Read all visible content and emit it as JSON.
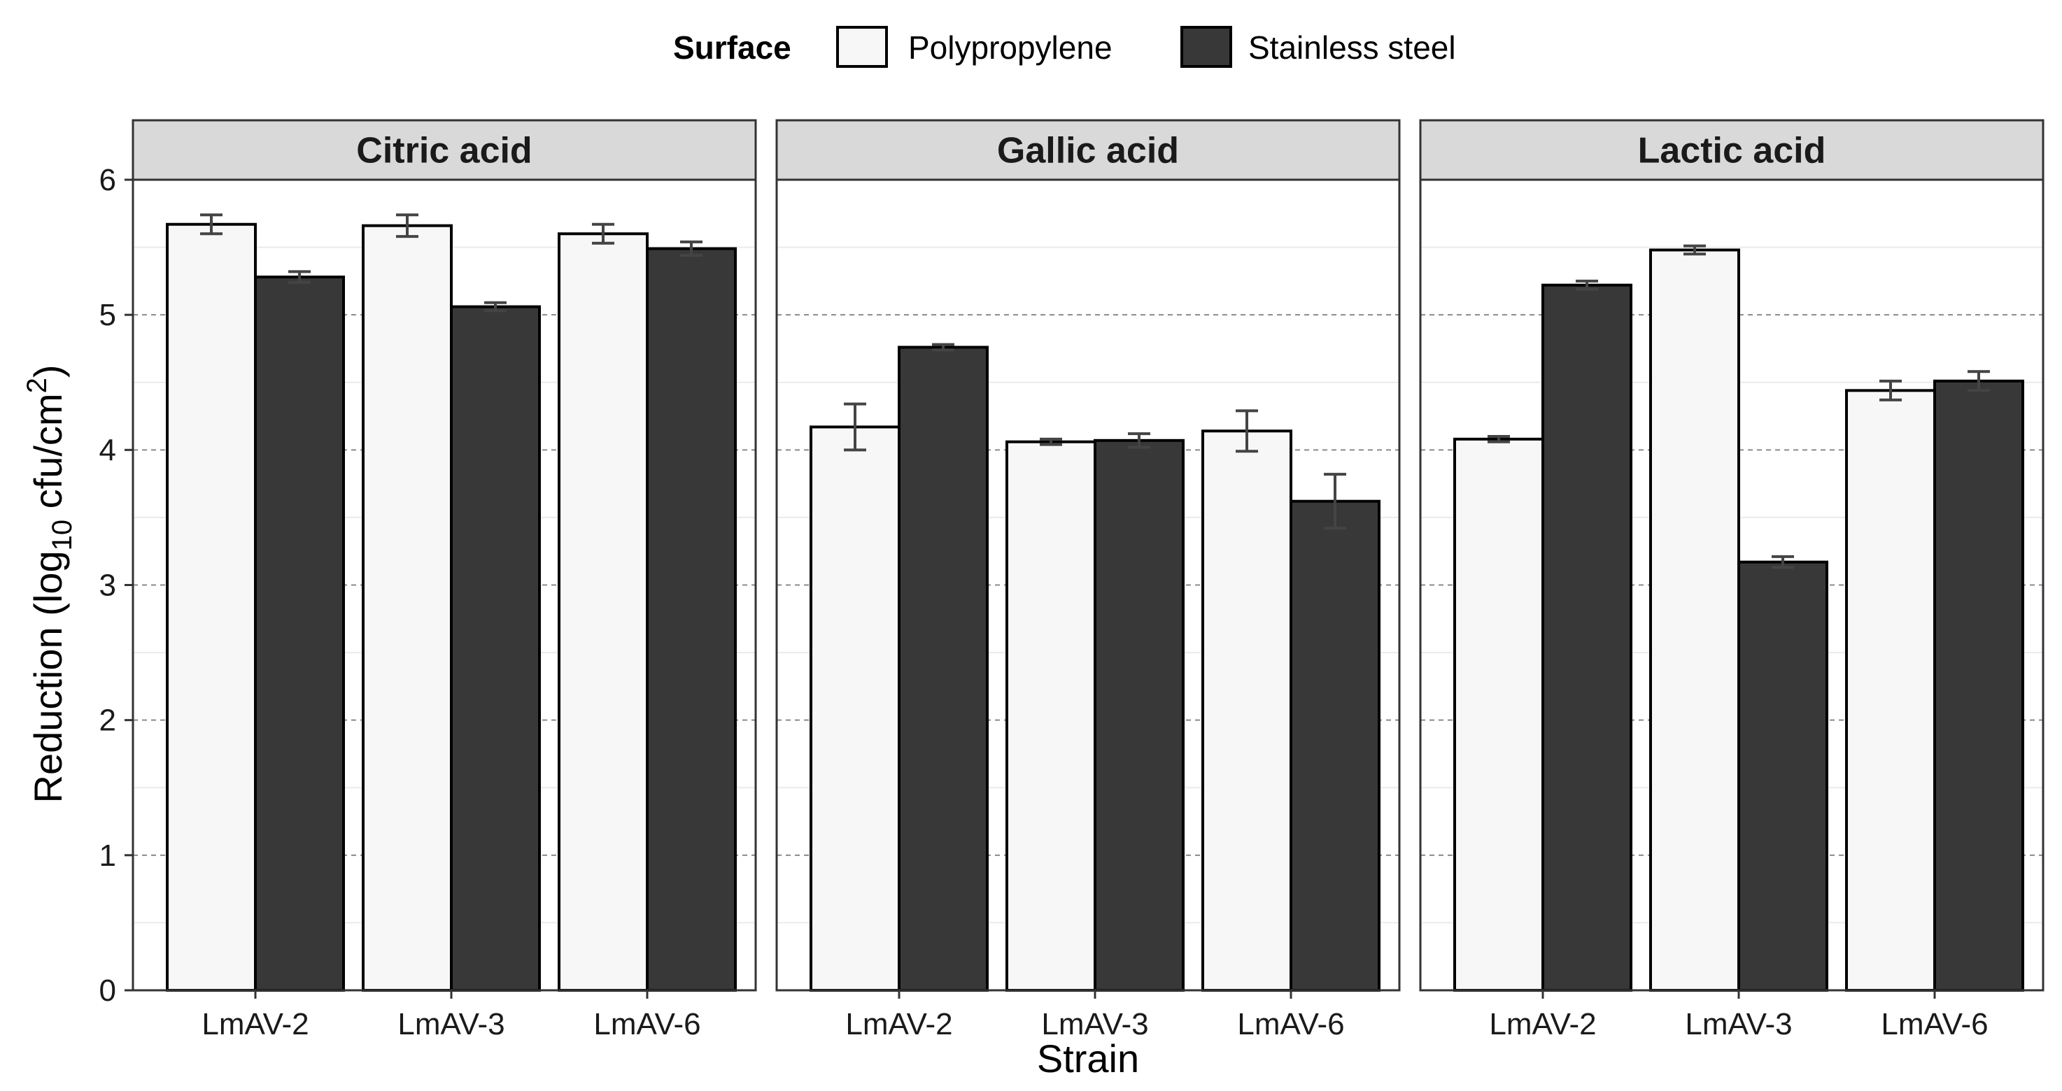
{
  "chart_data": {
    "type": "bar",
    "xlabel": "Strain",
    "ylabel_parts": [
      "Reduction (log",
      "10",
      " cfu/cm",
      "2",
      ")"
    ],
    "ylim": [
      0,
      6
    ],
    "yticks": [
      "0",
      "1",
      "2",
      "3",
      "4",
      "5",
      "6"
    ],
    "legend": {
      "title": "Surface",
      "placement": "top",
      "items": [
        {
          "name": "Polypropylene",
          "color": "#f7f7f7"
        },
        {
          "name": "Stainless steel",
          "color": "#383838"
        }
      ]
    },
    "categories": [
      "LmAV-2",
      "LmAV-3",
      "LmAV-6"
    ],
    "facets": [
      {
        "title": "Citric acid",
        "series": [
          {
            "name": "Polypropylene",
            "values": [
              5.67,
              5.66,
              5.6
            ],
            "errors": [
              0.07,
              0.08,
              0.07
            ]
          },
          {
            "name": "Stainless steel",
            "values": [
              5.28,
              5.06,
              5.49
            ],
            "errors": [
              0.04,
              0.03,
              0.05
            ]
          }
        ]
      },
      {
        "title": "Gallic acid",
        "series": [
          {
            "name": "Polypropylene",
            "values": [
              4.17,
              4.06,
              4.14
            ],
            "errors": [
              0.17,
              0.02,
              0.15
            ]
          },
          {
            "name": "Stainless steel",
            "values": [
              4.76,
              4.07,
              3.62
            ],
            "errors": [
              0.02,
              0.05,
              0.2
            ]
          }
        ]
      },
      {
        "title": "Lactic acid",
        "series": [
          {
            "name": "Polypropylene",
            "values": [
              4.08,
              5.48,
              4.44
            ],
            "errors": [
              0.02,
              0.03,
              0.07
            ]
          },
          {
            "name": "Stainless steel",
            "values": [
              5.22,
              3.17,
              4.51
            ],
            "errors": [
              0.03,
              0.04,
              0.07
            ]
          }
        ]
      }
    ],
    "grid": {
      "major": "dashed",
      "minor": "solid-light"
    }
  }
}
